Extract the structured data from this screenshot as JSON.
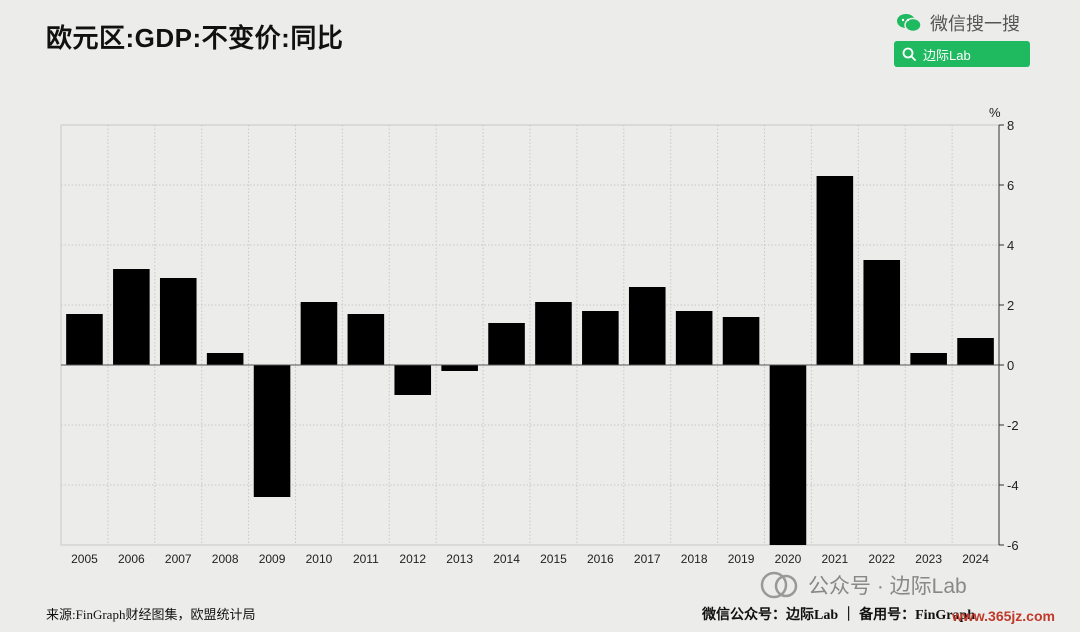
{
  "title": "欧元区:GDP:不变价:同比",
  "wechat_search_label": "微信搜一搜",
  "search_button_label": "边际Lab",
  "source_text": "来源:FinGraph财经图集，欧盟统计局",
  "footer_text": "微信公众号：边际Lab ｜ 备用号：FinGraph",
  "watermark_text": "公众号 · 边际Lab",
  "site_mark_text": "www.365jz.com",
  "colors": {
    "bar": "#000000",
    "background": "#ececea",
    "grid": "#c9c9c9",
    "wechat_green": "#1fb960"
  },
  "chart_data": {
    "type": "bar",
    "categories": [
      "2005",
      "2006",
      "2007",
      "2008",
      "2009",
      "2010",
      "2011",
      "2012",
      "2013",
      "2014",
      "2015",
      "2016",
      "2017",
      "2018",
      "2019",
      "2020",
      "2021",
      "2022",
      "2023",
      "2024"
    ],
    "values": [
      1.7,
      3.2,
      2.9,
      0.4,
      -4.4,
      2.1,
      1.7,
      -1.0,
      -0.2,
      1.4,
      2.1,
      1.8,
      2.6,
      1.8,
      1.6,
      -6.0,
      6.3,
      3.5,
      0.4,
      0.9
    ],
    "unit": "%",
    "ylim": [
      -6,
      8
    ],
    "yticks": [
      8,
      6,
      4,
      2,
      0,
      -2,
      -4,
      -6
    ],
    "grid": true,
    "y_axis_side": "right"
  }
}
